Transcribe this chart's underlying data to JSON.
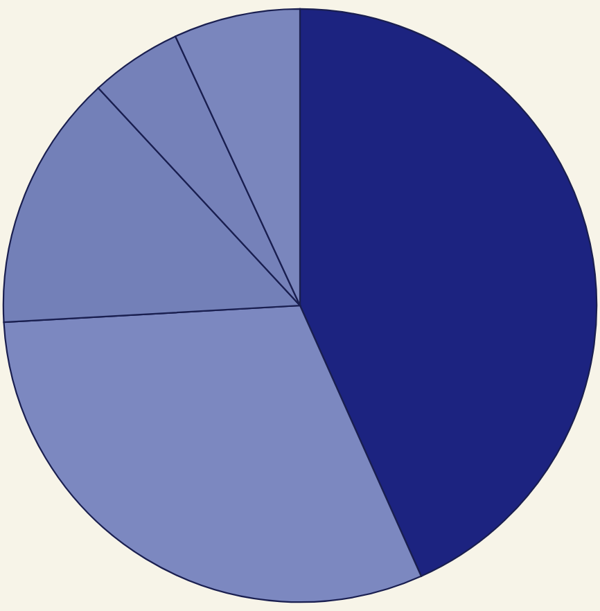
{
  "chart_data": {
    "type": "pie",
    "categories": [
      null,
      null,
      null,
      null,
      null
    ],
    "values": [
      43.3,
      30.8,
      14.0,
      5.0,
      6.9
    ],
    "colors": [
      "#1c2380",
      "#7c88c0",
      "#7380b8",
      "#7581b9",
      "#7a86bd"
    ]
  }
}
